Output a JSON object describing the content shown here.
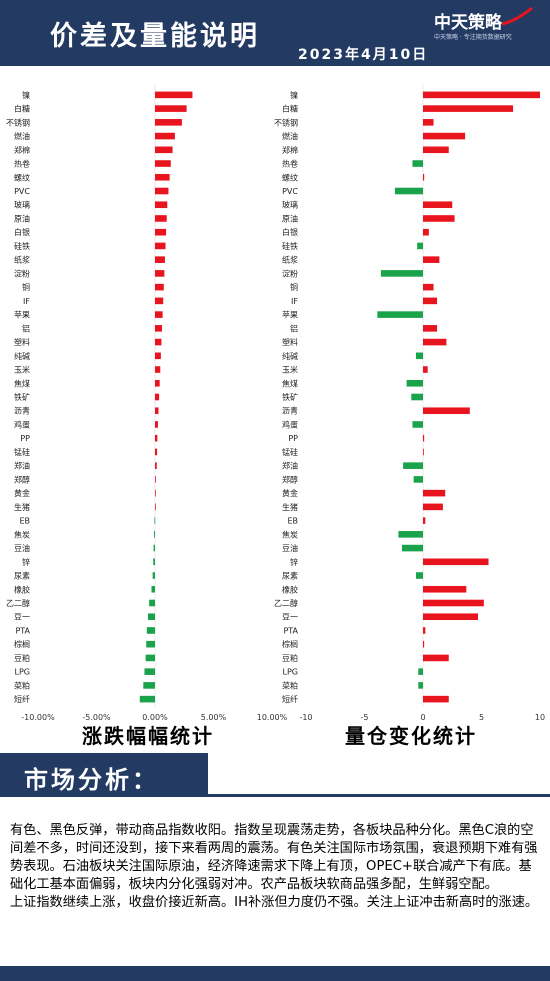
{
  "header": {
    "title": "价差及量能说明",
    "date": "2023年4月10日",
    "logo_text": "中天策略",
    "logo_sub": "中天策略 · 专注期货数据研究"
  },
  "captions": {
    "left": "涨跌幅幅统计",
    "right": "量仓变化统计"
  },
  "section": {
    "title": "市场分析："
  },
  "analysis": {
    "p1": "有色、黑色反弹，带动商品指数收阳。指数呈现震荡走势，各板块品种分化。黑色C浪的空间差不多，时间还没到，接下来看两周的震荡。有色关注国际市场氛围，衰退预期下难有强势表现。石油板块关注国际原油，经济降速需求下降上有顶，OPEC+联合减产下有底。基础化工基本面偏弱，板块内分化强弱对冲。农产品板块软商品强多配，生鲜弱空配。",
    "p2": "上证指数继续上涨，收盘价接近新高。IH补涨但力度仍不强。关注上证冲击新高时的涨速。"
  },
  "colors": {
    "up": "#e8141e",
    "down": "#1aa34a",
    "navy": "#233a63"
  },
  "chart_data": [
    {
      "type": "bar",
      "orientation": "horizontal",
      "title": "涨跌幅幅统计",
      "xlim": [
        -10,
        10
      ],
      "ticks": [
        "-10.00%",
        "-5.00%",
        "0.00%",
        "5.00%",
        "10.00%"
      ],
      "categories": [
        "镍",
        "白糖",
        "不锈钢",
        "燃油",
        "郑棉",
        "热卷",
        "螺纹",
        "PVC",
        "玻璃",
        "原油",
        "白银",
        "硅铁",
        "纸浆",
        "淀粉",
        "铜",
        "IF",
        "苹果",
        "铝",
        "塑料",
        "纯碱",
        "玉米",
        "焦煤",
        "铁矿",
        "沥青",
        "鸡蛋",
        "PP",
        "锰硅",
        "郑油",
        "郑醇",
        "黄金",
        "生猪",
        "EB",
        "焦炭",
        "豆油",
        "锌",
        "尿素",
        "橡胶",
        "乙二醇",
        "豆一",
        "PTA",
        "棕榈",
        "豆粕",
        "LPG",
        "菜粕",
        "短纤"
      ],
      "values": [
        3.2,
        2.7,
        2.3,
        1.7,
        1.5,
        1.35,
        1.25,
        1.15,
        1.05,
        1.0,
        0.95,
        0.9,
        0.85,
        0.8,
        0.75,
        0.7,
        0.65,
        0.6,
        0.55,
        0.5,
        0.45,
        0.4,
        0.35,
        0.3,
        0.25,
        0.2,
        0.18,
        0.15,
        0.05,
        0.04,
        0.02,
        -0.05,
        -0.08,
        -0.12,
        -0.15,
        -0.2,
        -0.3,
        -0.5,
        -0.6,
        -0.7,
        -0.75,
        -0.8,
        -0.9,
        -1.0,
        -1.3
      ]
    },
    {
      "type": "bar",
      "orientation": "horizontal",
      "title": "量仓变化统计",
      "xlim": [
        -10,
        10
      ],
      "ticks": [
        "-10",
        "-5",
        "0",
        "5",
        "10"
      ],
      "categories": [
        "镍",
        "白糖",
        "不锈钢",
        "燃油",
        "郑棉",
        "热卷",
        "螺纹",
        "PVC",
        "玻璃",
        "原油",
        "白银",
        "硅铁",
        "纸浆",
        "淀粉",
        "铜",
        "IF",
        "苹果",
        "铝",
        "塑料",
        "纯碱",
        "玉米",
        "焦煤",
        "铁矿",
        "沥青",
        "鸡蛋",
        "PP",
        "锰硅",
        "郑油",
        "郑醇",
        "黄金",
        "生猪",
        "EB",
        "焦炭",
        "豆油",
        "锌",
        "尿素",
        "橡胶",
        "乙二醇",
        "豆一",
        "PTA",
        "棕榈",
        "豆粕",
        "LPG",
        "菜粕",
        "短纤"
      ],
      "values": [
        10,
        7.7,
        0.9,
        3.6,
        2.2,
        -0.9,
        0.1,
        -2.4,
        2.5,
        2.7,
        0.5,
        -0.5,
        1.4,
        -3.6,
        0.9,
        1.2,
        -3.9,
        1.2,
        2.0,
        -0.6,
        0.4,
        -1.4,
        -1.0,
        4.0,
        -0.9,
        0.1,
        0.05,
        -1.7,
        -0.8,
        1.9,
        1.7,
        0.2,
        -2.1,
        -1.8,
        5.6,
        -0.6,
        3.7,
        5.2,
        4.7,
        0.2,
        0.1,
        2.2,
        -0.4,
        -0.4,
        2.2
      ]
    }
  ]
}
